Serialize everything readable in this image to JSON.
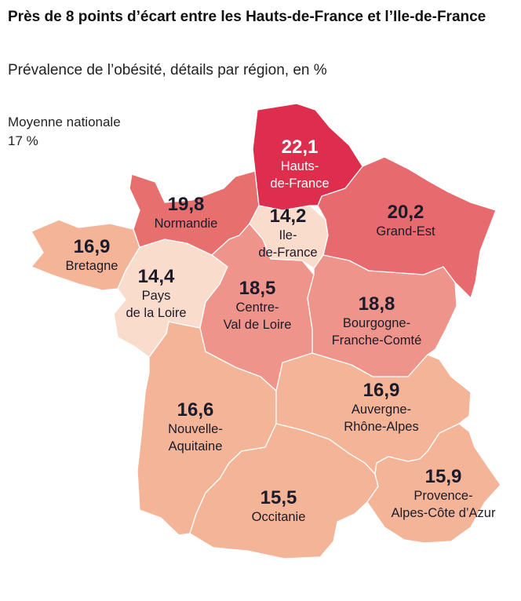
{
  "title": "Près de 8 points d’écart entre les Hauts-de-France et l’Ile-de-France",
  "subtitle": "Prévalence de l’obésité, détails par région, en %",
  "national_average": {
    "label": "Moyenne nationale",
    "value": "17 %"
  },
  "color_scale": {
    "lowest": "#fadccd",
    "low": "#f4b497",
    "mid": "#ef948a",
    "high": "#e76a6e",
    "highest": "#dd2e4d"
  },
  "regions": [
    {
      "key": "hdf",
      "name_lines": [
        "Hauts-",
        "de-France"
      ],
      "value": "22,1",
      "fill": "#dd2e4d"
    },
    {
      "key": "ge",
      "name_lines": [
        "Grand-Est"
      ],
      "value": "20,2",
      "fill": "#e76a6e"
    },
    {
      "key": "nor",
      "name_lines": [
        "Normandie"
      ],
      "value": "19,8",
      "fill": "#e7706f"
    },
    {
      "key": "idf",
      "name_lines": [
        "Ile-",
        "de-France"
      ],
      "value": "14,2",
      "fill": "#fadccd"
    },
    {
      "key": "bre",
      "name_lines": [
        "Bretagne"
      ],
      "value": "16,9",
      "fill": "#f4b497"
    },
    {
      "key": "pdl",
      "name_lines": [
        "Pays",
        "de la Loire"
      ],
      "value": "14,4",
      "fill": "#fadccd"
    },
    {
      "key": "cvl",
      "name_lines": [
        "Centre-",
        "Val de Loire"
      ],
      "value": "18,5",
      "fill": "#ef948a"
    },
    {
      "key": "bfc",
      "name_lines": [
        "Bourgogne-",
        "Franche-Comté"
      ],
      "value": "18,8",
      "fill": "#ef948a"
    },
    {
      "key": "na",
      "name_lines": [
        "Nouvelle-",
        "Aquitaine"
      ],
      "value": "16,6",
      "fill": "#f4b497"
    },
    {
      "key": "ara",
      "name_lines": [
        "Auvergne-",
        "Rhône-Alpes"
      ],
      "value": "16,9",
      "fill": "#f4b497"
    },
    {
      "key": "occ",
      "name_lines": [
        "Occitanie"
      ],
      "value": "15,5",
      "fill": "#f4b497"
    },
    {
      "key": "paca",
      "name_lines": [
        "Provence-",
        "Alpes-Côte d’Azur"
      ],
      "value": "15,9",
      "fill": "#f4b497"
    }
  ]
}
